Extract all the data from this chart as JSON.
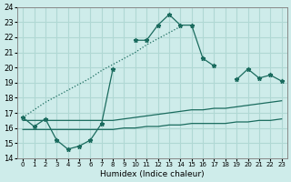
{
  "xlabel": "Humidex (Indice chaleur)",
  "x_ticks": [
    0,
    1,
    2,
    3,
    4,
    5,
    6,
    7,
    8,
    9,
    10,
    11,
    12,
    13,
    14,
    15,
    16,
    17,
    18,
    19,
    20,
    21,
    22,
    23
  ],
  "ylim": [
    14,
    24
  ],
  "yticks": [
    14,
    15,
    16,
    17,
    18,
    19,
    20,
    21,
    22,
    23,
    24
  ],
  "xlim": [
    -0.5,
    23.5
  ],
  "bg_color": "#ceecea",
  "grid_color": "#b0d8d4",
  "line_color": "#1a6b5e",
  "series_main": [
    16.7,
    16.1,
    16.6,
    15.2,
    14.6,
    14.8,
    15.2,
    16.3,
    19.9,
    null,
    21.8,
    21.8,
    22.8,
    23.5,
    22.8,
    22.8,
    20.6,
    20.1,
    null,
    19.2,
    19.9,
    19.3,
    19.5,
    19.1
  ],
  "series_dotted": [
    16.7,
    17.2,
    17.7,
    18.1,
    18.5,
    18.9,
    19.3,
    19.8,
    20.2,
    20.6,
    21.0,
    21.5,
    21.9,
    22.3,
    22.7,
    null,
    null,
    null,
    null,
    null,
    null,
    null,
    null,
    null
  ],
  "line_flat1": [
    16.5,
    16.5,
    16.5,
    16.5,
    16.5,
    16.5,
    16.5,
    16.5,
    16.5,
    16.6,
    16.7,
    16.8,
    16.9,
    17.0,
    17.1,
    17.2,
    17.2,
    17.3,
    17.3,
    17.4,
    17.5,
    17.6,
    17.7,
    17.8
  ],
  "line_flat2": [
    15.9,
    15.9,
    15.9,
    15.9,
    15.9,
    15.9,
    15.9,
    15.9,
    15.9,
    16.0,
    16.0,
    16.1,
    16.1,
    16.2,
    16.2,
    16.3,
    16.3,
    16.3,
    16.3,
    16.4,
    16.4,
    16.5,
    16.5,
    16.6
  ]
}
